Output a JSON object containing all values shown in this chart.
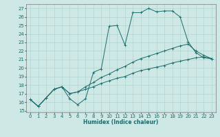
{
  "xlabel": "Humidex (Indice chaleur)",
  "ylabel": "",
  "xlim": [
    -0.5,
    23.5
  ],
  "ylim": [
    14.8,
    27.5
  ],
  "yticks": [
    15,
    16,
    17,
    18,
    19,
    20,
    21,
    22,
    23,
    24,
    25,
    26,
    27
  ],
  "xticks": [
    0,
    1,
    2,
    3,
    4,
    5,
    6,
    7,
    8,
    9,
    10,
    11,
    12,
    13,
    14,
    15,
    16,
    17,
    18,
    19,
    20,
    21,
    22,
    23
  ],
  "bg_color": "#cde8e5",
  "line_color": "#1a6b6b",
  "grid_color": "#aacfcc",
  "line1_y": [
    16.3,
    15.5,
    16.5,
    17.5,
    17.8,
    16.4,
    15.7,
    16.4,
    19.5,
    19.9,
    24.9,
    25.0,
    22.7,
    26.5,
    26.5,
    27.0,
    26.6,
    26.7,
    26.7,
    26.0,
    23.1,
    21.8,
    21.2,
    21.1
  ],
  "line2_y": [
    16.3,
    15.5,
    16.5,
    17.5,
    17.8,
    17.0,
    17.2,
    17.5,
    17.8,
    18.2,
    18.5,
    18.8,
    19.0,
    19.4,
    19.7,
    19.9,
    20.1,
    20.3,
    20.6,
    20.8,
    21.0,
    21.2,
    21.3,
    21.1
  ],
  "line3_y": [
    16.3,
    15.5,
    16.5,
    17.5,
    17.8,
    17.0,
    17.2,
    17.8,
    18.3,
    18.9,
    19.3,
    19.8,
    20.2,
    20.7,
    21.1,
    21.4,
    21.7,
    22.0,
    22.3,
    22.6,
    22.8,
    22.0,
    21.5,
    21.1
  ],
  "xlabel_fontsize": 5.5,
  "tick_fontsize": 5,
  "lw": 0.7,
  "markersize": 2.5
}
